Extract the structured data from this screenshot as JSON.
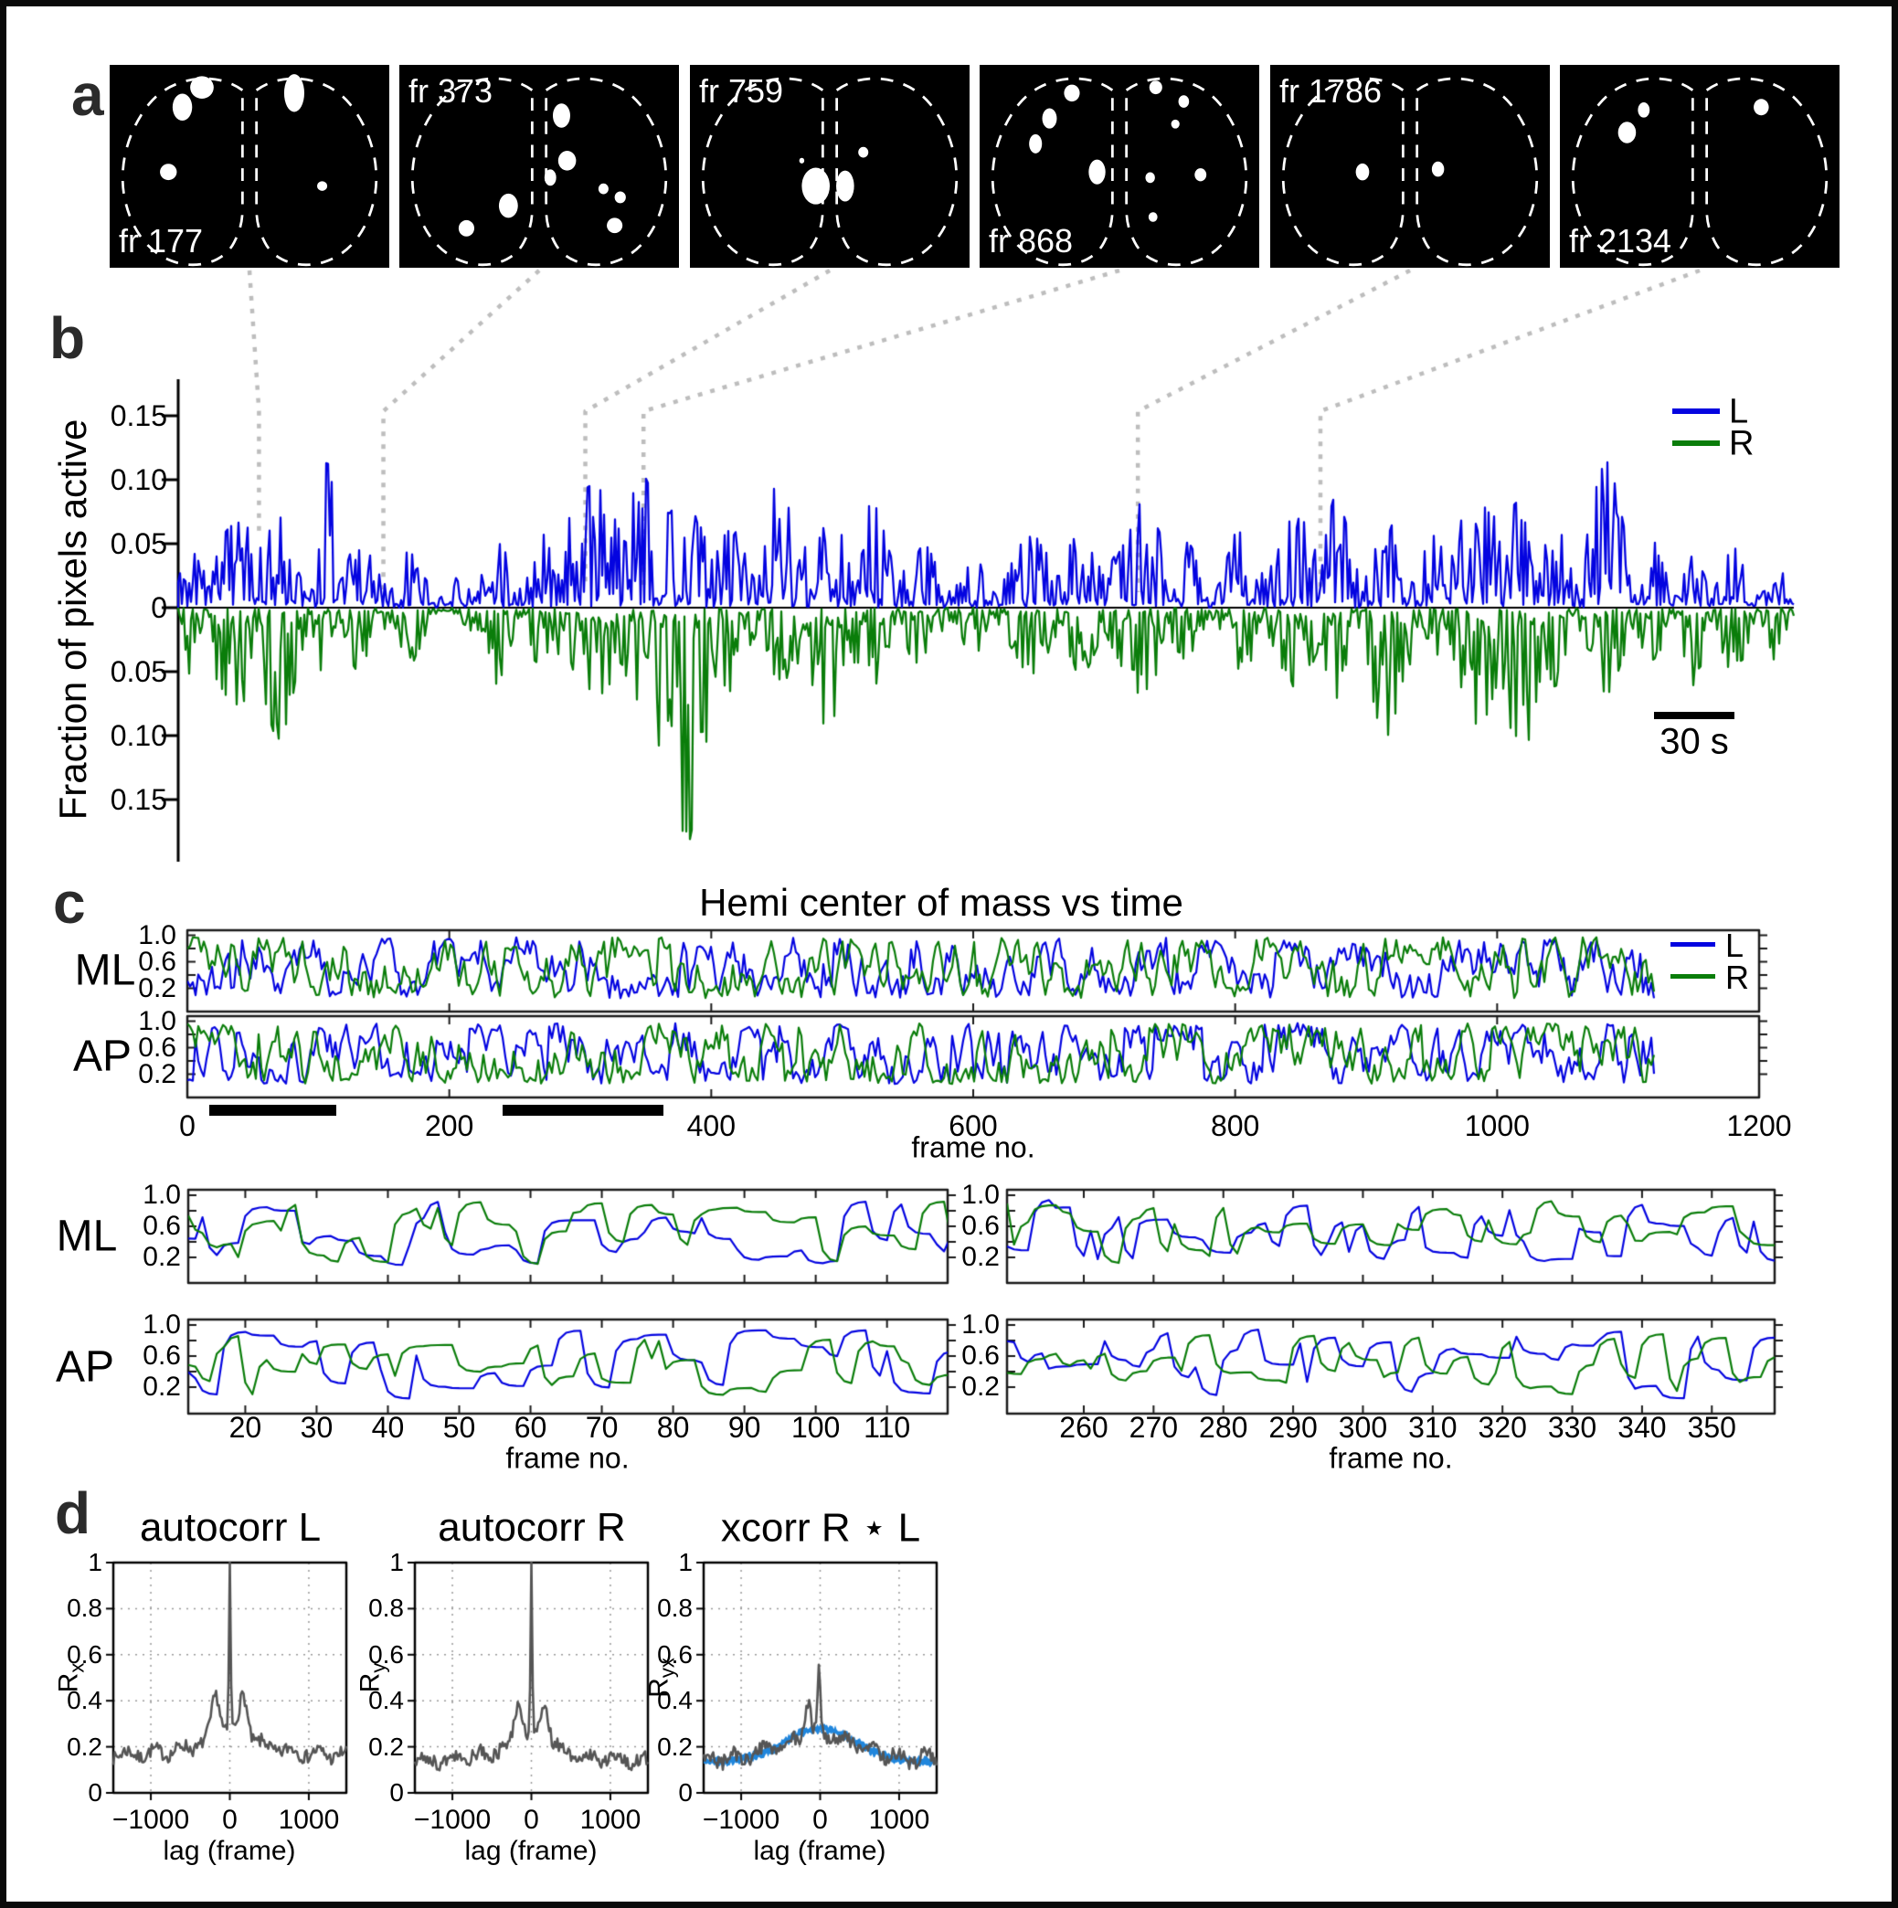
{
  "panels": {
    "a": "a",
    "b": "b",
    "c": "c",
    "d": "d"
  },
  "colors": {
    "L": "#0404e0",
    "R": "#0a7d0a",
    "trace_gray": "#555555",
    "band_blue": "#2086dc",
    "connector": "#bdbdbd",
    "bar": "#000000"
  },
  "chart_data": [
    {
      "id": "a_active_pixel_maps",
      "type": "image-sequence",
      "description": "binary active-pixel maps over dashed dorsal cortex outline, L and R hemispheres",
      "frames": [
        {
          "label": "fr 177",
          "label_pos": "bottom-left",
          "blobs": [
            [
              33,
              8,
              4.2,
              4
            ],
            [
              26,
              15,
              3.5,
              4.8
            ],
            [
              66,
              10,
              3.6,
              6.7
            ],
            [
              21,
              38,
              3,
              2.9
            ],
            [
              76,
              43,
              1.8,
              1.7
            ]
          ]
        },
        {
          "label": "fr 373",
          "label_pos": "top-left",
          "blobs": [
            [
              58,
              18,
              3.1,
              4.3
            ],
            [
              60,
              34,
              3.2,
              3.5
            ],
            [
              54,
              40,
              2.1,
              2.9
            ],
            [
              73,
              44,
              1.8,
              1.9
            ],
            [
              79,
              47,
              2,
              2.1
            ],
            [
              39,
              50,
              3.4,
              4.3
            ],
            [
              24,
              58,
              2.8,
              2.9
            ],
            [
              77,
              57,
              2.8,
              2.7
            ]
          ]
        },
        {
          "label": "fr 759",
          "label_pos": "top-left",
          "blobs": [
            [
              45,
              43,
              5,
              6.5
            ],
            [
              55.5,
              43,
              3.2,
              5.5
            ],
            [
              40,
              34,
              0.9,
              1
            ],
            [
              62,
              31,
              1.8,
              1.9
            ]
          ]
        },
        {
          "label": "fr 868",
          "label_pos": "bottom-left",
          "blobs": [
            [
              33,
              10,
              2.8,
              3
            ],
            [
              25,
              19,
              2.6,
              3.6
            ],
            [
              20,
              28,
              2.3,
              3.4
            ],
            [
              42,
              38,
              3,
              4.4
            ],
            [
              63,
              8,
              2.3,
              2.4
            ],
            [
              73,
              13,
              1.9,
              2.2
            ],
            [
              70,
              21,
              1.5,
              1.6
            ],
            [
              61,
              40,
              1.7,
              1.9
            ],
            [
              79,
              39,
              2.1,
              2.3
            ],
            [
              62,
              54,
              1.6,
              1.7
            ]
          ]
        },
        {
          "label": "fr 1786",
          "label_pos": "top-left",
          "blobs": [
            [
              33,
              38,
              2.4,
              3
            ],
            [
              60,
              37,
              2.2,
              2.7
            ]
          ]
        },
        {
          "label": "fr 2134",
          "label_pos": "bottom-left",
          "blobs": [
            [
              30,
              16,
              2.1,
              2.7
            ],
            [
              24,
              24,
              3.2,
              3.8
            ],
            [
              72,
              15,
              2.7,
              2.9
            ]
          ]
        }
      ]
    },
    {
      "id": "b_fraction_pixels_active",
      "type": "line",
      "ylabel": "Fraction of pixels active",
      "scalebar": "30 s",
      "ylim": [
        -0.19,
        0.16
      ],
      "yticks": [
        {
          "label": "0.15",
          "v": 0.15
        },
        {
          "label": "0.10",
          "v": 0.1
        },
        {
          "label": "0.05",
          "v": 0.05
        },
        {
          "label": "0",
          "v": 0
        },
        {
          "label": "0.05",
          "v": -0.05
        },
        {
          "label": "0.10",
          "v": -0.1
        },
        {
          "label": "0.15",
          "v": -0.15
        }
      ],
      "legend_pos": "top-right",
      "series": [
        {
          "name": "L",
          "sign": 1,
          "seed": 11,
          "peak": 0.112,
          "bursts": [
            [
              0.006,
              0.01,
              0.055
            ],
            [
              0.037,
              0.023,
              0.065
            ],
            [
              0.062,
              0.014,
              0.07
            ],
            [
              0.092,
              0.008,
              0.112
            ],
            [
              0.113,
              0.014,
              0.05
            ],
            [
              0.144,
              0.011,
              0.045
            ],
            [
              0.17,
              0.008,
              0.03
            ],
            [
              0.195,
              0.014,
              0.055
            ],
            [
              0.225,
              0.009,
              0.07
            ],
            [
              0.256,
              0.025,
              0.095
            ],
            [
              0.288,
              0.017,
              0.1
            ],
            [
              0.312,
              0.019,
              0.09
            ],
            [
              0.342,
              0.014,
              0.06
            ],
            [
              0.373,
              0.011,
              0.105
            ],
            [
              0.401,
              0.02,
              0.07
            ],
            [
              0.429,
              0.014,
              0.08
            ],
            [
              0.46,
              0.014,
              0.05
            ],
            [
              0.492,
              0.011,
              0.04
            ],
            [
              0.528,
              0.017,
              0.055
            ],
            [
              0.559,
              0.014,
              0.06
            ],
            [
              0.596,
              0.02,
              0.08
            ],
            [
              0.624,
              0.011,
              0.05
            ],
            [
              0.658,
              0.014,
              0.06
            ],
            [
              0.692,
              0.017,
              0.07
            ],
            [
              0.718,
              0.011,
              0.09
            ],
            [
              0.749,
              0.014,
              0.065
            ],
            [
              0.777,
              0.011,
              0.055
            ],
            [
              0.805,
              0.017,
              0.1
            ],
            [
              0.831,
              0.014,
              0.085
            ],
            [
              0.853,
              0.011,
              0.07
            ],
            [
              0.884,
              0.014,
              0.112
            ],
            [
              0.912,
              0.011,
              0.05
            ],
            [
              0.938,
              0.009,
              0.04
            ],
            [
              0.963,
              0.011,
              0.045
            ],
            [
              0.989,
              0.008,
              0.035
            ]
          ]
        },
        {
          "name": "R",
          "sign": -1,
          "seed": 29,
          "peak": 0.19,
          "bursts": [
            [
              0.006,
              0.01,
              0.05
            ],
            [
              0.037,
              0.023,
              0.075
            ],
            [
              0.062,
              0.014,
              0.1
            ],
            [
              0.092,
              0.008,
              0.06
            ],
            [
              0.113,
              0.014,
              0.05
            ],
            [
              0.144,
              0.011,
              0.04
            ],
            [
              0.195,
              0.014,
              0.06
            ],
            [
              0.225,
              0.009,
              0.05
            ],
            [
              0.256,
              0.025,
              0.07
            ],
            [
              0.288,
              0.017,
              0.08
            ],
            [
              0.312,
              0.019,
              0.19
            ],
            [
              0.342,
              0.014,
              0.07
            ],
            [
              0.373,
              0.011,
              0.06
            ],
            [
              0.401,
              0.02,
              0.09
            ],
            [
              0.429,
              0.014,
              0.06
            ],
            [
              0.46,
              0.014,
              0.045
            ],
            [
              0.492,
              0.011,
              0.035
            ],
            [
              0.528,
              0.017,
              0.05
            ],
            [
              0.559,
              0.014,
              0.05
            ],
            [
              0.596,
              0.02,
              0.065
            ],
            [
              0.624,
              0.011,
              0.04
            ],
            [
              0.658,
              0.014,
              0.05
            ],
            [
              0.692,
              0.017,
              0.06
            ],
            [
              0.718,
              0.011,
              0.075
            ],
            [
              0.749,
              0.014,
              0.11
            ],
            [
              0.777,
              0.011,
              0.05
            ],
            [
              0.805,
              0.017,
              0.09
            ],
            [
              0.831,
              0.014,
              0.115
            ],
            [
              0.853,
              0.011,
              0.06
            ],
            [
              0.884,
              0.014,
              0.065
            ],
            [
              0.912,
              0.011,
              0.04
            ],
            [
              0.938,
              0.009,
              0.06
            ],
            [
              0.963,
              0.011,
              0.05
            ],
            [
              0.989,
              0.008,
              0.04
            ]
          ]
        }
      ],
      "connectors": [
        {
          "frame": "fr 177",
          "x_frac": 0.05
        },
        {
          "frame": "fr 373",
          "x_frac": 0.127
        },
        {
          "frame": "fr 759",
          "x_frac": 0.252
        },
        {
          "frame": "fr 868",
          "x_frac": 0.288
        },
        {
          "frame": "fr 1786",
          "x_frac": 0.594
        },
        {
          "frame": "fr 2134",
          "x_frac": 0.707
        }
      ]
    },
    {
      "id": "c_hemi_com_vs_time",
      "type": "line",
      "title": "Hemi center of mass vs time",
      "rows": [
        "ML",
        "AP"
      ],
      "xlabel": "frame no.",
      "xlim": [
        0,
        1200
      ],
      "data_end": 1122,
      "xticks": [
        {
          "label": "0",
          "v": 0
        },
        {
          "label": "200",
          "v": 200
        },
        {
          "label": "400",
          "v": 400
        },
        {
          "label": "600",
          "v": 600
        },
        {
          "label": "800",
          "v": 800
        },
        {
          "label": "1000",
          "v": 1000
        },
        {
          "label": "1200",
          "v": 1200
        }
      ],
      "ylim": [
        0,
        1
      ],
      "yticks": [
        {
          "label": "1.0",
          "v": 1
        },
        {
          "label": "0.6",
          "v": 0.6
        },
        {
          "label": "0.2",
          "v": 0.2
        }
      ],
      "series": [
        {
          "name": "L"
        },
        {
          "name": "R"
        }
      ],
      "highlight_bars_frames": [
        [
          17,
          114
        ],
        [
          241,
          364
        ]
      ],
      "seeds": {
        "ML_L": 101,
        "ML_R": 102,
        "AP_L": 103,
        "AP_R": 104
      }
    },
    {
      "id": "c_zoom_frames_12_118",
      "type": "line",
      "rows": [
        "ML",
        "AP"
      ],
      "xlabel": "frame no.",
      "xlim": [
        12,
        118.5
      ],
      "xticks": [
        {
          "label": "20",
          "v": 20
        },
        {
          "label": "30",
          "v": 30
        },
        {
          "label": "40",
          "v": 40
        },
        {
          "label": "50",
          "v": 50
        },
        {
          "label": "60",
          "v": 60
        },
        {
          "label": "70",
          "v": 70
        },
        {
          "label": "80",
          "v": 80
        },
        {
          "label": "90",
          "v": 90
        },
        {
          "label": "100",
          "v": 100
        },
        {
          "label": "110",
          "v": 110
        }
      ],
      "ylim": [
        0,
        1
      ],
      "yticks": [
        {
          "label": "1.0",
          "v": 1
        },
        {
          "label": "0.6",
          "v": 0.6
        },
        {
          "label": "0.2",
          "v": 0.2
        }
      ],
      "seeds": {
        "ML_L": 201,
        "ML_R": 202,
        "AP_L": 203,
        "AP_R": 204
      }
    },
    {
      "id": "c_zoom_frames_249_359",
      "type": "line",
      "rows": [
        "ML",
        "AP"
      ],
      "xlabel": "frame no.",
      "xlim": [
        249,
        359
      ],
      "xticks": [
        {
          "label": "260",
          "v": 260
        },
        {
          "label": "270",
          "v": 270
        },
        {
          "label": "280",
          "v": 280
        },
        {
          "label": "290",
          "v": 290
        },
        {
          "label": "300",
          "v": 300
        },
        {
          "label": "310",
          "v": 310
        },
        {
          "label": "320",
          "v": 320
        },
        {
          "label": "330",
          "v": 330
        },
        {
          "label": "340",
          "v": 340
        },
        {
          "label": "350",
          "v": 350
        }
      ],
      "ylim": [
        0,
        1
      ],
      "yticks": [
        {
          "label": "1.0",
          "v": 1
        },
        {
          "label": "0.6",
          "v": 0.6
        },
        {
          "label": "0.2",
          "v": 0.2
        }
      ],
      "seeds": {
        "ML_L": 301,
        "ML_R": 302,
        "AP_L": 303,
        "AP_R": 304
      }
    },
    {
      "id": "d_autocorr_L",
      "type": "line",
      "kind": "autocorr",
      "title": "autocorr L",
      "ylabel_base": "R",
      "ylabel_sub": "x",
      "xlabel": "lag (frame)",
      "xlim": [
        -1475,
        1475
      ],
      "xticks": [
        {
          "label": "−1000",
          "v": -1000
        },
        {
          "label": "0",
          "v": 0
        },
        {
          "label": "1000",
          "v": 1000
        }
      ],
      "ylim": [
        0,
        1
      ],
      "yticks": [
        {
          "label": "1",
          "v": 1
        },
        {
          "label": "0.8",
          "v": 0.8
        },
        {
          "label": "0.6",
          "v": 0.6
        },
        {
          "label": "0.4",
          "v": 0.4
        },
        {
          "label": "0.2",
          "v": 0.2
        },
        {
          "label": "0",
          "v": 0
        }
      ],
      "baseline": 0.165,
      "center_peak": 1.0,
      "shoulder": {
        "lag": 175,
        "value": 0.42
      },
      "seed": 7
    },
    {
      "id": "d_autocorr_R",
      "type": "line",
      "kind": "autocorr",
      "title": "autocorr R",
      "ylabel_base": "R",
      "ylabel_sub": "y",
      "xlabel": "lag (frame)",
      "xlim": [
        -1475,
        1475
      ],
      "xticks": [
        {
          "label": "−1000",
          "v": -1000
        },
        {
          "label": "0",
          "v": 0
        },
        {
          "label": "1000",
          "v": 1000
        }
      ],
      "ylim": [
        0,
        1
      ],
      "yticks": [
        {
          "label": "1",
          "v": 1
        },
        {
          "label": "0.8",
          "v": 0.8
        },
        {
          "label": "0.6",
          "v": 0.6
        },
        {
          "label": "0.4",
          "v": 0.4
        },
        {
          "label": "0.2",
          "v": 0.2
        },
        {
          "label": "0",
          "v": 0
        }
      ],
      "baseline": 0.14,
      "center_peak": 1.0,
      "shoulder": {
        "lag": 170,
        "value": 0.4
      },
      "seed": 8
    },
    {
      "id": "d_xcorr_RL",
      "type": "line",
      "kind": "xcorr",
      "title": "xcorr R ⋆ L",
      "ylabel_base": "R",
      "ylabel_sub": "yx",
      "xlabel": "lag (frame)",
      "xlim": [
        -1475,
        1475
      ],
      "xticks": [
        {
          "label": "−1000",
          "v": -1000
        },
        {
          "label": "0",
          "v": 0
        },
        {
          "label": "1000",
          "v": 1000
        }
      ],
      "ylim": [
        0,
        1
      ],
      "yticks": [
        {
          "label": "1",
          "v": 1
        },
        {
          "label": "0.8",
          "v": 0.8
        },
        {
          "label": "0.6",
          "v": 0.6
        },
        {
          "label": "0.4",
          "v": 0.4
        },
        {
          "label": "0.2",
          "v": 0.2
        },
        {
          "label": "0",
          "v": 0
        }
      ],
      "baseline": 0.145,
      "gray_peaks": [
        {
          "lag": -160,
          "value": 0.41
        },
        {
          "lag": -15,
          "value": 0.54
        }
      ],
      "band": {
        "edge": 0.135,
        "center": 0.28
      },
      "seed": 9
    }
  ]
}
